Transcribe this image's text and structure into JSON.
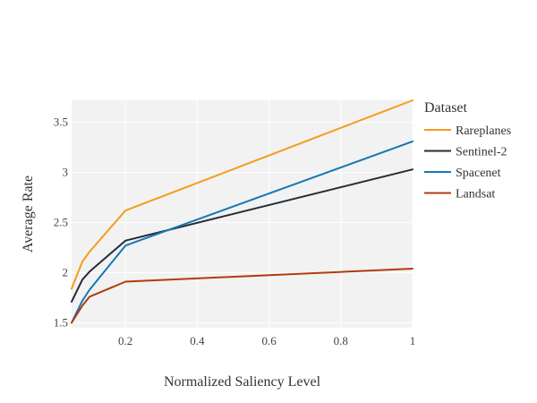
{
  "chart_data": {
    "type": "line",
    "title": "",
    "xlabel": "Normalized Saliency Level",
    "ylabel": "Average Rate",
    "xlim": [
      0.05,
      1.0
    ],
    "ylim": [
      1.45,
      3.72
    ],
    "xticks": [
      0.2,
      0.4,
      0.6,
      0.8,
      1.0
    ],
    "xtick_labels": [
      "0.2",
      "0.4",
      "0.6",
      "0.8",
      "1"
    ],
    "yticks": [
      1.5,
      2.0,
      2.5,
      3.0,
      3.5
    ],
    "ytick_labels": [
      "1.5",
      "2",
      "2.5",
      "3",
      "3.5"
    ],
    "grid": true,
    "plot_background": "#f2f2f2",
    "legend": {
      "title": "Dataset",
      "position": "right"
    },
    "series": [
      {
        "name": "Rareplanes",
        "color": "#f59c1a",
        "x": [
          0.05,
          0.08,
          0.1,
          0.2,
          1.0
        ],
        "y": [
          1.84,
          2.11,
          2.21,
          2.62,
          3.72
        ]
      },
      {
        "name": "Sentinel-2",
        "color": "#262b37",
        "x": [
          0.05,
          0.08,
          0.1,
          0.2,
          1.0
        ],
        "y": [
          1.71,
          1.93,
          2.01,
          2.32,
          3.03
        ]
      },
      {
        "name": "Spacenet",
        "color": "#1577b3",
        "x": [
          0.05,
          0.08,
          0.1,
          0.2,
          1.0
        ],
        "y": [
          1.5,
          1.72,
          1.83,
          2.27,
          3.31
        ]
      },
      {
        "name": "Landsat",
        "color": "#b23b0c",
        "x": [
          0.05,
          0.08,
          0.1,
          0.2,
          1.0
        ],
        "y": [
          1.5,
          1.67,
          1.76,
          1.91,
          2.04
        ]
      }
    ]
  }
}
